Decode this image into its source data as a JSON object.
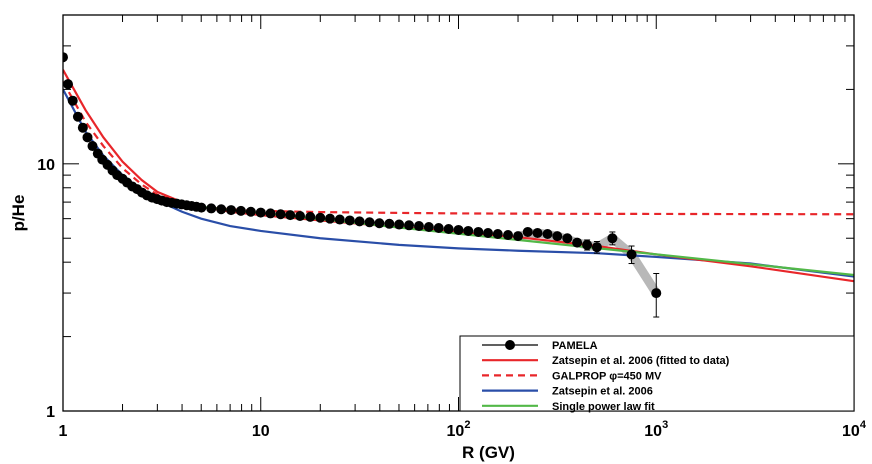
{
  "chart_data": {
    "type": "line",
    "xscale": "log",
    "yscale": "log",
    "xlim": [
      1,
      10000
    ],
    "ylim": [
      1,
      40
    ],
    "xlabel": "R (GV)",
    "ylabel": "p/He",
    "x_tick_labels": [
      {
        "value": 1,
        "base": "1",
        "exp": ""
      },
      {
        "value": 10,
        "base": "10",
        "exp": ""
      },
      {
        "value": 100,
        "base": "10",
        "exp": "2"
      },
      {
        "value": 1000,
        "base": "10",
        "exp": "3"
      },
      {
        "value": 10000,
        "base": "10",
        "exp": "4"
      }
    ],
    "y_tick_labels": [
      {
        "value": 1,
        "label": "1"
      },
      {
        "value": 10,
        "label": "10"
      }
    ],
    "legend_position": "bottom-right",
    "series": [
      {
        "name": "PAMELA",
        "style": "points",
        "color": "#000000",
        "points": [
          [
            1.0,
            27.0,
            0.5
          ],
          [
            1.06,
            21.0,
            0.4
          ],
          [
            1.12,
            18.0,
            0.3
          ],
          [
            1.19,
            15.5,
            0.25
          ],
          [
            1.26,
            14.0,
            0.2
          ],
          [
            1.33,
            12.8,
            0.2
          ],
          [
            1.41,
            11.8,
            0.15
          ],
          [
            1.5,
            11.0,
            0.15
          ],
          [
            1.58,
            10.4,
            0.1
          ],
          [
            1.68,
            9.9,
            0.1
          ],
          [
            1.78,
            9.4,
            0.1
          ],
          [
            1.88,
            9.0,
            0.1
          ],
          [
            2.0,
            8.7,
            0.1
          ],
          [
            2.11,
            8.4,
            0.1
          ],
          [
            2.24,
            8.1,
            0.1
          ],
          [
            2.37,
            7.9,
            0.1
          ],
          [
            2.51,
            7.65,
            0.08
          ],
          [
            2.66,
            7.45,
            0.08
          ],
          [
            2.82,
            7.3,
            0.08
          ],
          [
            2.99,
            7.2,
            0.08
          ],
          [
            3.16,
            7.1,
            0.08
          ],
          [
            3.35,
            7.0,
            0.08
          ],
          [
            3.55,
            6.95,
            0.08
          ],
          [
            3.76,
            6.9,
            0.08
          ],
          [
            3.98,
            6.85,
            0.08
          ],
          [
            4.22,
            6.8,
            0.08
          ],
          [
            4.47,
            6.75,
            0.08
          ],
          [
            4.73,
            6.7,
            0.08
          ],
          [
            5.01,
            6.65,
            0.08
          ],
          [
            5.62,
            6.6,
            0.08
          ],
          [
            6.31,
            6.55,
            0.08
          ],
          [
            7.08,
            6.5,
            0.08
          ],
          [
            7.94,
            6.45,
            0.08
          ],
          [
            8.91,
            6.4,
            0.08
          ],
          [
            10.0,
            6.35,
            0.08
          ],
          [
            11.2,
            6.3,
            0.08
          ],
          [
            12.6,
            6.25,
            0.08
          ],
          [
            14.1,
            6.2,
            0.08
          ],
          [
            15.8,
            6.15,
            0.08
          ],
          [
            17.8,
            6.1,
            0.08
          ],
          [
            20.0,
            6.05,
            0.08
          ],
          [
            22.4,
            6.0,
            0.08
          ],
          [
            25.1,
            5.95,
            0.08
          ],
          [
            28.2,
            5.9,
            0.08
          ],
          [
            31.6,
            5.85,
            0.08
          ],
          [
            35.5,
            5.8,
            0.08
          ],
          [
            39.8,
            5.75,
            0.08
          ],
          [
            44.7,
            5.72,
            0.08
          ],
          [
            50.1,
            5.68,
            0.08
          ],
          [
            56.2,
            5.64,
            0.08
          ],
          [
            63.1,
            5.6,
            0.1
          ],
          [
            70.8,
            5.55,
            0.1
          ],
          [
            79.4,
            5.5,
            0.1
          ],
          [
            89.1,
            5.45,
            0.1
          ],
          [
            100.0,
            5.4,
            0.1
          ],
          [
            112.0,
            5.35,
            0.1
          ],
          [
            126.0,
            5.3,
            0.12
          ],
          [
            141.0,
            5.25,
            0.12
          ],
          [
            158.0,
            5.2,
            0.12
          ],
          [
            178.0,
            5.15,
            0.12
          ],
          [
            200.0,
            5.1,
            0.15
          ],
          [
            224.0,
            5.3,
            0.15
          ],
          [
            251.0,
            5.25,
            0.15
          ],
          [
            282.0,
            5.2,
            0.15
          ],
          [
            316.0,
            5.1,
            0.18
          ],
          [
            355.0,
            5.0,
            0.2
          ],
          [
            398.0,
            4.8,
            0.2
          ],
          [
            447.0,
            4.7,
            0.22
          ],
          [
            501.0,
            4.6,
            0.25
          ],
          [
            600.0,
            5.0,
            0.3
          ],
          [
            750.0,
            4.3,
            0.35
          ],
          [
            1000.0,
            3.0,
            0.6
          ]
        ]
      },
      {
        "name": "Zatsepin et al. 2006 (fitted to data)",
        "style": "solid",
        "color": "#e8262a",
        "points": [
          [
            1.0,
            24.0
          ],
          [
            1.3,
            16.5
          ],
          [
            1.6,
            12.8
          ],
          [
            2.0,
            10.2
          ],
          [
            2.5,
            8.6
          ],
          [
            3.0,
            7.7
          ],
          [
            4.0,
            7.0
          ],
          [
            5.0,
            6.7
          ],
          [
            7.0,
            6.4
          ],
          [
            10.0,
            6.2
          ],
          [
            20.0,
            5.9
          ],
          [
            50.0,
            5.55
          ],
          [
            100.0,
            5.3
          ],
          [
            200.0,
            5.05
          ],
          [
            500.0,
            4.65
          ],
          [
            1000.0,
            4.3
          ],
          [
            3000.0,
            3.85
          ],
          [
            10000.0,
            3.35
          ]
        ]
      },
      {
        "name": "GALPROP φ=450 MV",
        "style": "dashed",
        "color": "#e8262a",
        "points": [
          [
            1.0,
            21.5
          ],
          [
            1.3,
            14.8
          ],
          [
            1.6,
            11.8
          ],
          [
            2.0,
            9.6
          ],
          [
            2.5,
            8.25
          ],
          [
            3.0,
            7.5
          ],
          [
            4.0,
            6.95
          ],
          [
            5.0,
            6.7
          ],
          [
            7.0,
            6.55
          ],
          [
            10.0,
            6.45
          ],
          [
            20.0,
            6.38
          ],
          [
            50.0,
            6.33
          ],
          [
            100.0,
            6.3
          ],
          [
            300.0,
            6.28
          ],
          [
            1000.0,
            6.27
          ],
          [
            3000.0,
            6.26
          ],
          [
            10000.0,
            6.25
          ]
        ]
      },
      {
        "name": "Zatsepin et al. 2006",
        "style": "solid",
        "color": "#2a4ea8",
        "points": [
          [
            1.0,
            20.0
          ],
          [
            1.3,
            13.5
          ],
          [
            1.6,
            10.8
          ],
          [
            2.0,
            9.0
          ],
          [
            2.5,
            7.8
          ],
          [
            3.0,
            7.1
          ],
          [
            4.0,
            6.4
          ],
          [
            5.0,
            6.0
          ],
          [
            7.0,
            5.6
          ],
          [
            10.0,
            5.35
          ],
          [
            20.0,
            5.0
          ],
          [
            50.0,
            4.7
          ],
          [
            100.0,
            4.55
          ],
          [
            200.0,
            4.45
          ],
          [
            500.0,
            4.35
          ],
          [
            1000.0,
            4.2
          ],
          [
            3000.0,
            3.95
          ],
          [
            10000.0,
            3.5
          ]
        ]
      },
      {
        "name": "Single power law fit",
        "style": "solid",
        "color": "#52b848",
        "points": [
          [
            5.0,
            6.7
          ],
          [
            10000.0,
            3.55
          ]
        ]
      }
    ],
    "uncertainty_band": {
      "color": "#b8b8b8",
      "points": [
        [
          200.0,
          5.1
        ],
        [
          251.0,
          5.25
        ],
        [
          316.0,
          5.1
        ],
        [
          398.0,
          4.8
        ],
        [
          501.0,
          4.6
        ],
        [
          600.0,
          5.0
        ],
        [
          750.0,
          4.3
        ],
        [
          1000.0,
          3.0
        ]
      ]
    }
  }
}
